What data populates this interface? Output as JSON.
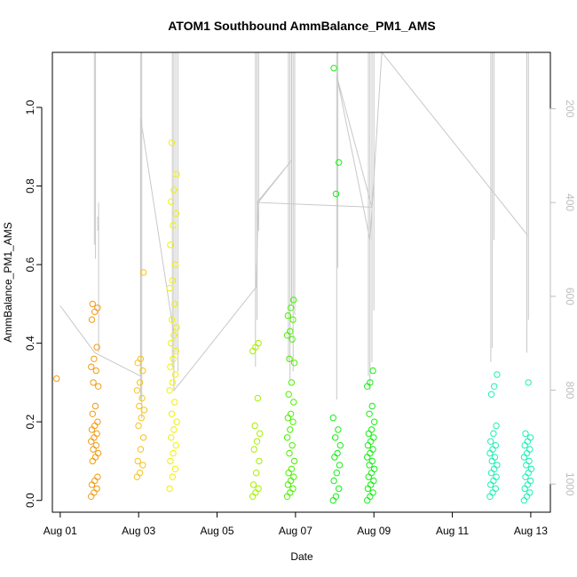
{
  "chart_data": {
    "type": "scatter",
    "title": "ATOM1 Southbound AmmBalance_PM1_AMS",
    "xlabel": "Date",
    "ylabel": "AmmBalance_PM1_AMS",
    "x_unit": "days",
    "x_start": "Aug 01",
    "xlim": [
      -0.2,
      12.5
    ],
    "ylim": [
      -0.03,
      1.14
    ],
    "y_ticks": [
      0.0,
      0.2,
      0.4,
      0.6,
      0.8,
      1.0
    ],
    "y_tick_labels": [
      "0.0",
      "0.2",
      "0.4",
      "0.6",
      "0.8",
      "1.0"
    ],
    "x_ticks": [
      0,
      2,
      4,
      6,
      8,
      10,
      12
    ],
    "x_tick_labels": [
      "Aug 01",
      "Aug 03",
      "Aug 05",
      "Aug 07",
      "Aug 09",
      "Aug 11",
      "Aug 13"
    ],
    "right_axis": {
      "reversed": true,
      "ylim": [
        80,
        1060
      ],
      "ticks": [
        200,
        400,
        600,
        800,
        1000
      ],
      "tick_labels": [
        "200",
        "400",
        "600",
        "800",
        "1000"
      ],
      "color": "#bdbdbd"
    },
    "grid": false,
    "legend": "none",
    "point_colors": [
      "#F39C12",
      "#F5C518",
      "#F0F00A",
      "#A8F000",
      "#4CF000",
      "#14F014",
      "#00F05A",
      "#1EF0B4"
    ],
    "trace_color": "#c8c8c8",
    "clusters": [
      {
        "x": 0.0,
        "values": [
          0.31
        ],
        "color_index": 0
      },
      {
        "x": 0.88,
        "values": [
          0.01,
          0.02,
          0.03,
          0.04,
          0.05,
          0.06,
          0.1,
          0.11,
          0.12,
          0.13,
          0.14,
          0.15,
          0.16,
          0.17,
          0.18,
          0.19,
          0.2,
          0.22,
          0.24,
          0.29,
          0.3,
          0.33,
          0.34,
          0.36,
          0.39,
          0.46,
          0.48,
          0.49,
          0.5
        ],
        "color_index": 0
      },
      {
        "x": 2.05,
        "values": [
          0.06,
          0.07,
          0.09,
          0.1,
          0.13,
          0.16,
          0.19,
          0.21,
          0.23,
          0.24,
          0.26,
          0.28,
          0.3,
          0.33,
          0.35,
          0.36,
          0.58
        ],
        "color_index": 1
      },
      {
        "x": 2.88,
        "values": [
          0.03,
          0.06,
          0.08,
          0.1,
          0.12,
          0.14,
          0.16,
          0.18,
          0.2,
          0.22,
          0.25,
          0.28,
          0.3,
          0.32,
          0.34,
          0.36,
          0.38,
          0.4,
          0.42,
          0.44,
          0.46,
          0.5,
          0.54,
          0.56,
          0.6,
          0.65,
          0.7,
          0.73,
          0.76,
          0.79,
          0.83,
          0.91
        ],
        "color_index": 2
      },
      {
        "x": 5.0,
        "values": [
          0.01,
          0.02,
          0.03,
          0.04,
          0.07,
          0.1,
          0.13,
          0.15,
          0.17,
          0.19,
          0.26,
          0.38,
          0.39,
          0.4
        ],
        "color_index": 3
      },
      {
        "x": 5.88,
        "values": [
          0.01,
          0.02,
          0.03,
          0.04,
          0.05,
          0.06,
          0.07,
          0.08,
          0.1,
          0.12,
          0.14,
          0.16,
          0.18,
          0.2,
          0.21,
          0.22,
          0.25,
          0.27,
          0.3,
          0.35,
          0.36,
          0.41,
          0.42,
          0.43,
          0.46,
          0.47,
          0.49,
          0.51
        ],
        "color_index": 4
      },
      {
        "x": 7.05,
        "values": [
          0.0,
          0.01,
          0.03,
          0.05,
          0.07,
          0.09,
          0.11,
          0.12,
          0.14,
          0.16,
          0.18,
          0.21,
          0.78,
          0.86,
          1.1
        ],
        "color_index": 5
      },
      {
        "x": 7.92,
        "values": [
          0.0,
          0.01,
          0.02,
          0.03,
          0.04,
          0.05,
          0.06,
          0.07,
          0.08,
          0.09,
          0.1,
          0.11,
          0.12,
          0.13,
          0.14,
          0.15,
          0.16,
          0.17,
          0.18,
          0.2,
          0.22,
          0.24,
          0.29,
          0.3,
          0.33
        ],
        "color_index": 5
      },
      {
        "x": 11.05,
        "values": [
          0.01,
          0.02,
          0.03,
          0.04,
          0.05,
          0.06,
          0.07,
          0.08,
          0.09,
          0.1,
          0.11,
          0.12,
          0.13,
          0.14,
          0.15,
          0.17,
          0.19,
          0.27,
          0.29,
          0.32
        ],
        "color_index": 7
      },
      {
        "x": 11.92,
        "values": [
          0.0,
          0.01,
          0.02,
          0.03,
          0.04,
          0.05,
          0.06,
          0.07,
          0.08,
          0.09,
          0.1,
          0.11,
          0.12,
          0.13,
          0.14,
          0.15,
          0.16,
          0.17,
          0.3
        ],
        "color_index": 7
      }
    ],
    "trace": {
      "axis": "right",
      "spikes": [
        {
          "x": 0.87,
          "from": 490,
          "to": 60
        },
        {
          "x": 0.9,
          "from": 520,
          "to": 60
        },
        {
          "x": 0.96,
          "from": 430,
          "to": 460
        },
        {
          "x": 0.98,
          "from": 400,
          "to": 720
        },
        {
          "x": 2.05,
          "from": 60,
          "to": 820
        },
        {
          "x": 2.08,
          "from": 60,
          "to": 860
        },
        {
          "x": 2.86,
          "from": 60,
          "to": 750
        },
        {
          "x": 2.9,
          "from": 60,
          "to": 700
        },
        {
          "x": 2.95,
          "from": 60,
          "to": 720
        },
        {
          "x": 3.0,
          "from": 60,
          "to": 760
        },
        {
          "x": 4.98,
          "from": 60,
          "to": 750
        },
        {
          "x": 5.02,
          "from": 60,
          "to": 650
        },
        {
          "x": 5.06,
          "from": 60,
          "to": 460
        },
        {
          "x": 5.82,
          "from": 60,
          "to": 740
        },
        {
          "x": 5.86,
          "from": 60,
          "to": 780
        },
        {
          "x": 5.9,
          "from": 60,
          "to": 620
        },
        {
          "x": 5.94,
          "from": 60,
          "to": 760
        },
        {
          "x": 5.98,
          "from": 60,
          "to": 640
        },
        {
          "x": 7.05,
          "from": 60,
          "to": 820
        },
        {
          "x": 7.08,
          "from": 60,
          "to": 540
        },
        {
          "x": 7.86,
          "from": 60,
          "to": 770
        },
        {
          "x": 7.9,
          "from": 60,
          "to": 800
        },
        {
          "x": 7.95,
          "from": 60,
          "to": 740
        },
        {
          "x": 8.0,
          "from": 60,
          "to": 630
        },
        {
          "x": 10.98,
          "from": 60,
          "to": 740
        },
        {
          "x": 11.02,
          "from": 60,
          "to": 710
        },
        {
          "x": 11.06,
          "from": 60,
          "to": 480
        },
        {
          "x": 11.9,
          "from": 60,
          "to": 720
        },
        {
          "x": 11.94,
          "from": 60,
          "to": 650
        }
      ],
      "connectors": [
        [
          0.0,
          620
        ],
        [
          0.88,
          720
        ],
        [
          2.05,
          770
        ],
        [
          2.05,
          220
        ],
        [
          2.9,
          680
        ],
        [
          2.9,
          800
        ],
        [
          3.1,
          780
        ],
        [
          5.0,
          580
        ],
        [
          5.05,
          400
        ],
        [
          5.9,
          310
        ],
        [
          5.02,
          400
        ],
        [
          7.95,
          410
        ],
        [
          7.05,
          130
        ],
        [
          7.9,
          480
        ],
        [
          8.2,
          60
        ],
        [
          11.92,
          470
        ]
      ]
    }
  }
}
